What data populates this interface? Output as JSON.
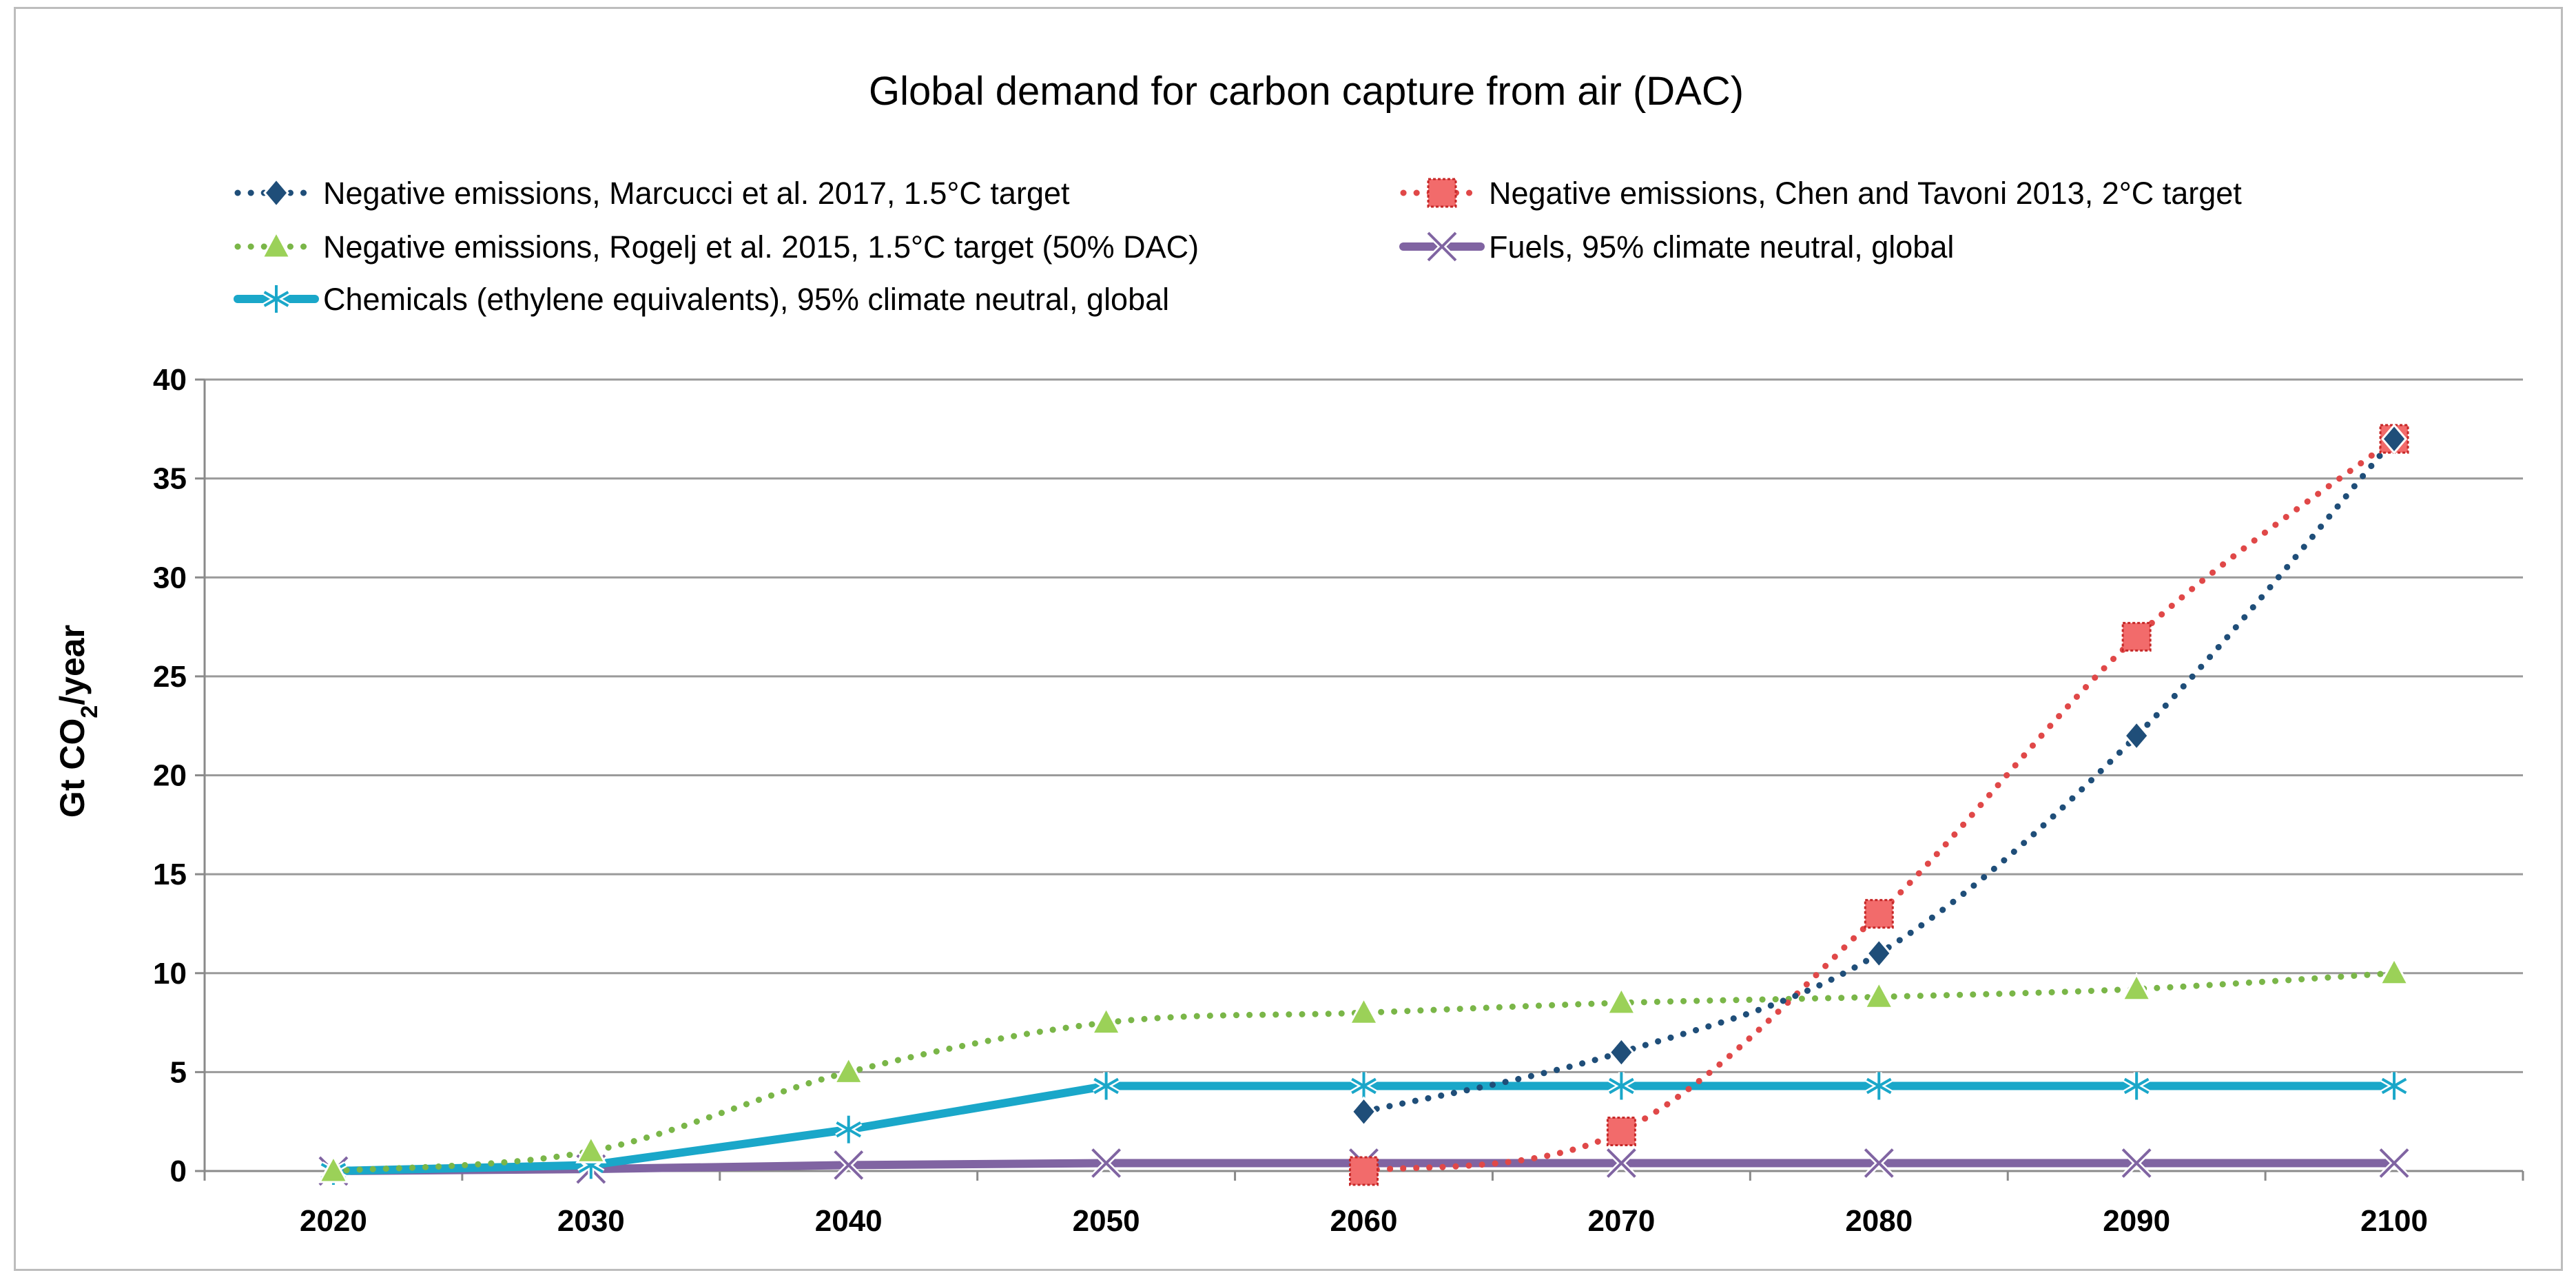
{
  "chart_data": {
    "type": "line",
    "title": "Global demand for carbon capture from air (DAC)",
    "xlabel": "",
    "ylabel_main": "Gt CO",
    "ylabel_sub": "2",
    "ylabel_tail": "/year",
    "categories": [
      "2020",
      "2030",
      "2040",
      "2050",
      "2060",
      "2070",
      "2080",
      "2090",
      "2100"
    ],
    "ylim": [
      0,
      40
    ],
    "yticks": [
      0,
      5,
      10,
      15,
      20,
      25,
      30,
      35,
      40
    ],
    "grid": true,
    "legend_position": "top",
    "series": [
      {
        "key": "marcucci",
        "name": "Negative emissions, Marcucci et al. 2017, 1.5°C target",
        "color": "#1f4e79",
        "line_style": "dotted",
        "marker": "diamond",
        "values": [
          null,
          null,
          null,
          null,
          3,
          6,
          11,
          22,
          37
        ]
      },
      {
        "key": "chen",
        "name": "Negative emissions, Chen and Tavoni 2013, 2°C target",
        "color": "#e04848",
        "line_style": "dotted",
        "marker": "square",
        "values": [
          null,
          null,
          null,
          null,
          0,
          2,
          13,
          27,
          37
        ]
      },
      {
        "key": "rogelj",
        "name": "Negative emissions, Rogelj et al. 2015, 1.5°C target (50% DAC)",
        "color": "#7ab648",
        "line_style": "dotted",
        "marker": "triangle",
        "values": [
          0,
          1,
          5,
          7.5,
          8,
          8.5,
          8.8,
          9.2,
          10
        ]
      },
      {
        "key": "fuels",
        "name": "Fuels, 95% climate neutral, global",
        "color": "#8064a2",
        "line_style": "solid",
        "marker": "x",
        "values": [
          0,
          0.1,
          0.3,
          0.4,
          0.4,
          0.4,
          0.4,
          0.4,
          0.4
        ]
      },
      {
        "key": "chemicals",
        "name": "Chemicals (ethylene equivalents), 95% climate neutral, global",
        "color": "#1aa7c9",
        "line_style": "solid",
        "marker": "asterisk",
        "values": [
          0,
          0.3,
          2.1,
          4.3,
          4.3,
          4.3,
          4.3,
          4.3,
          4.3
        ]
      }
    ]
  }
}
